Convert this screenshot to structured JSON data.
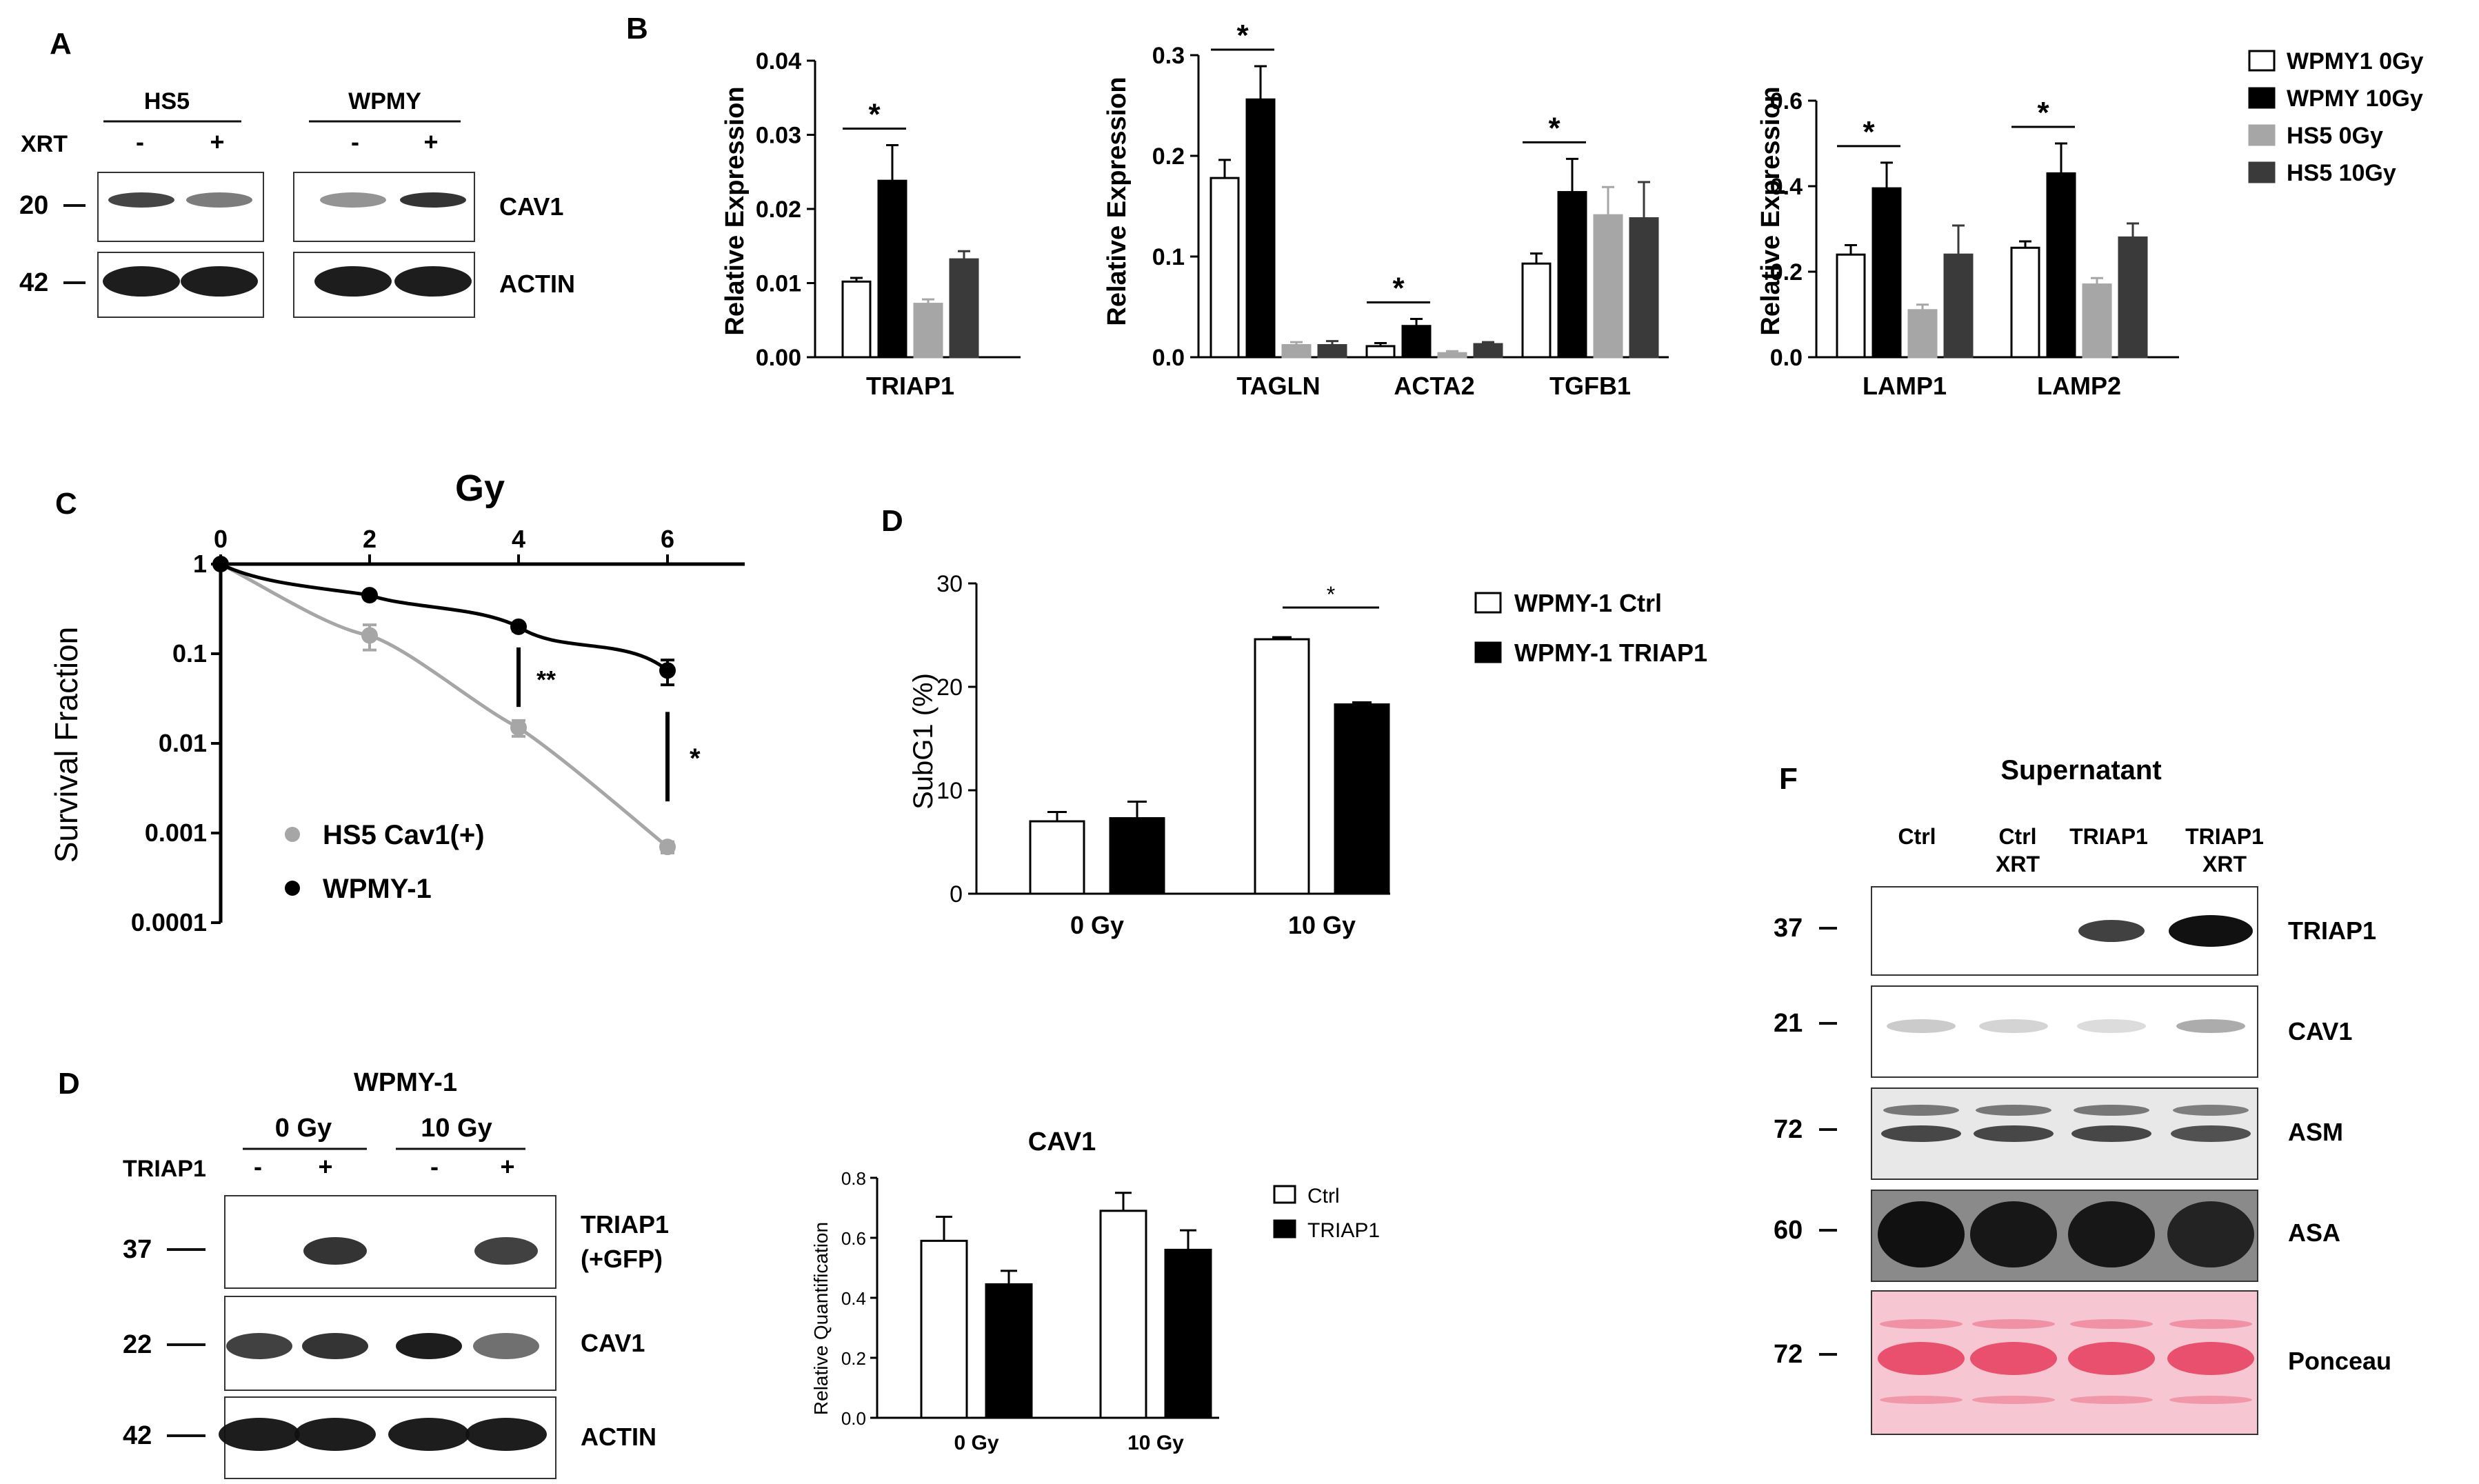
{
  "colors": {
    "wpmy0": "#ffffff",
    "wpmy10": "#000000",
    "hs5_0": "#a6a6a6",
    "hs5_10": "#3a3a3a",
    "ponceau": "#e9506e"
  },
  "panelA": {
    "label": "A",
    "group1": "HS5",
    "group2": "WPMY",
    "xrt": "XRT",
    "minus": "-",
    "plus": "+",
    "mw": [
      "20",
      "42"
    ],
    "rows": [
      "CAV1",
      "ACTIN"
    ],
    "band_intensity": {
      "CAV1": [
        0.78,
        0.55,
        0.45,
        0.85
      ],
      "ACTIN": [
        0.95,
        0.95,
        0.95,
        0.95
      ]
    }
  },
  "panelB": {
    "label": "B",
    "ylabel": "Relative Expression",
    "legend": [
      "WPMY1 0Gy",
      "WPMY 10Gy",
      "HS5 0Gy",
      "HS5 10Gy"
    ],
    "charts": [
      {
        "ticks": [
          "0.00",
          "0.01",
          "0.02",
          "0.03",
          "0.04"
        ],
        "ymax": 0.04,
        "genes": [
          {
            "name": "TRIAP1",
            "values": [
              0.0102,
              0.0238,
              0.0072,
              0.0132
            ],
            "errors": [
              0.0005,
              0.0048,
              0.0006,
              0.0011
            ],
            "sig": "*"
          }
        ]
      },
      {
        "ticks": [
          "0.0",
          "0.1",
          "0.2",
          "0.3"
        ],
        "ymax": 0.3,
        "genes": [
          {
            "name": "TAGLN",
            "values": [
              0.178,
              0.256,
              0.012,
              0.012
            ],
            "errors": [
              0.018,
              0.033,
              0.003,
              0.004
            ],
            "sig": "*"
          },
          {
            "name": "ACTA2",
            "values": [
              0.011,
              0.031,
              0.004,
              0.013
            ],
            "errors": [
              0.003,
              0.007,
              0.002,
              0.002
            ],
            "sig": "*"
          },
          {
            "name": "TGFB1",
            "values": [
              0.093,
              0.164,
              0.141,
              0.138
            ],
            "errors": [
              0.01,
              0.033,
              0.028,
              0.036
            ],
            "sig": "*"
          }
        ]
      },
      {
        "ticks": [
          "0.0",
          "0.2",
          "0.4",
          "0.6"
        ],
        "ymax": 0.6,
        "genes": [
          {
            "name": "LAMP1",
            "values": [
              0.24,
              0.395,
              0.11,
              0.24
            ],
            "errors": [
              0.022,
              0.06,
              0.013,
              0.068
            ],
            "sig": "*"
          },
          {
            "name": "LAMP2",
            "values": [
              0.256,
              0.43,
              0.17,
              0.28
            ],
            "errors": [
              0.015,
              0.07,
              0.015,
              0.033
            ],
            "sig": "*"
          }
        ]
      }
    ]
  },
  "panelC": {
    "label": "C",
    "title": "Gy",
    "ylabel": "Survival Fraction",
    "xticks": [
      "0",
      "2",
      "4",
      "6"
    ],
    "yticks": [
      "1",
      "0.1",
      "0.01",
      "0.001",
      "0.0001"
    ],
    "sig1": "**",
    "sig2": "*",
    "series": [
      {
        "name": "HS5 Cav1(+)",
        "color": "#a6a6a6",
        "x": [
          0,
          2,
          4,
          6
        ],
        "y": [
          1,
          0.16,
          0.015,
          0.0007
        ],
        "err": [
          0,
          0.05,
          0.003,
          0.0001
        ]
      },
      {
        "name": "WPMY-1",
        "color": "#000000",
        "x": [
          0,
          2,
          4,
          6
        ],
        "y": [
          1,
          0.45,
          0.2,
          0.065
        ],
        "err": [
          0,
          0.02,
          0.02,
          0.02
        ]
      }
    ]
  },
  "panelD1": {
    "label": "D",
    "ylabel": "SubG1 (%)",
    "ticks": [
      "0",
      "10",
      "20",
      "30"
    ],
    "ymax": 30,
    "categories": [
      "0 Gy",
      "10 Gy"
    ],
    "series": [
      {
        "name": "WPMY-1 Ctrl",
        "values": [
          7.0,
          24.6
        ],
        "errors": [
          0.9,
          0.2
        ]
      },
      {
        "name": "WPMY-1 TRIAP1",
        "values": [
          7.3,
          18.3
        ],
        "errors": [
          1.6,
          0.2
        ]
      }
    ],
    "sig": "*"
  },
  "panelD2": {
    "label": "D",
    "title": "WPMY-1",
    "group1": "0 Gy",
    "group2": "10 Gy",
    "rowlabel": "TRIAP1",
    "minus": "-",
    "plus": "+",
    "mw": [
      "37",
      "22",
      "42"
    ],
    "rows": [
      "TRIAP1",
      "(+GFP)",
      "CAV1",
      "ACTIN"
    ],
    "band_intensity": {
      "TRIAP1": [
        0.0,
        0.85,
        0.0,
        0.8
      ],
      "CAV1": [
        0.8,
        0.85,
        0.95,
        0.6
      ],
      "ACTIN": [
        0.95,
        0.95,
        0.95,
        0.95
      ]
    }
  },
  "panelD3": {
    "title": "CAV1",
    "ylabel": "Relative Quantification",
    "ticks": [
      "0.0",
      "0.2",
      "0.4",
      "0.6",
      "0.8"
    ],
    "ymax": 0.8,
    "categories": [
      "0 Gy",
      "10 Gy"
    ],
    "series": [
      {
        "name": "Ctrl",
        "values": [
          0.59,
          0.69
        ],
        "errors": [
          0.08,
          0.06
        ]
      },
      {
        "name": "TRIAP1",
        "values": [
          0.445,
          0.56
        ],
        "errors": [
          0.045,
          0.065
        ]
      }
    ]
  },
  "panelF": {
    "label": "F",
    "title": "Supernatant",
    "lanes": [
      {
        "l1": "Ctrl",
        "l2": ""
      },
      {
        "l1": "Ctrl",
        "l2": "XRT"
      },
      {
        "l1": "TRIAP1",
        "l2": ""
      },
      {
        "l1": "TRIAP1",
        "l2": "XRT"
      }
    ],
    "mw": [
      "37",
      "21",
      "72",
      "60",
      "72"
    ],
    "rows": [
      "TRIAP1",
      "CAV1",
      "ASM",
      "ASA",
      "Ponceau"
    ],
    "band_intensity": {
      "TRIAP1": [
        0.0,
        0.0,
        0.8,
        1.0
      ],
      "CAV1": [
        0.22,
        0.18,
        0.15,
        0.35
      ],
      "ASM": [
        0.75,
        0.75,
        0.75,
        0.7
      ],
      "ASA": [
        1.0,
        0.95,
        0.95,
        0.85
      ]
    }
  }
}
